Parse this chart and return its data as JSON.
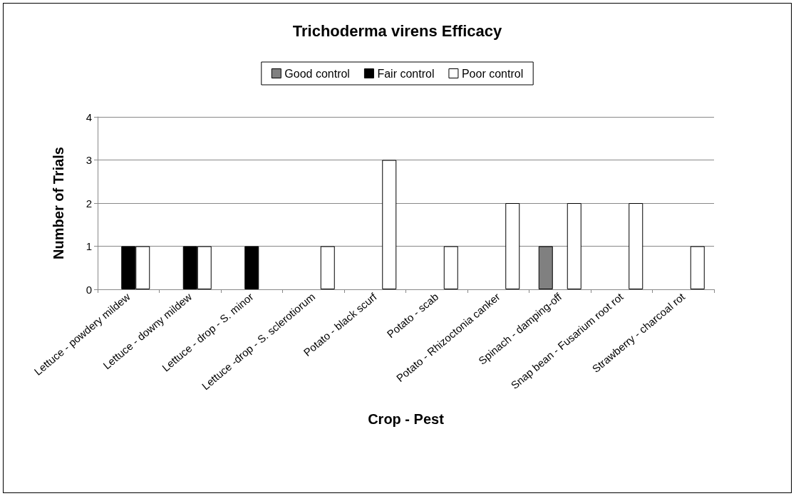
{
  "chart_data": {
    "type": "bar",
    "title": "Trichoderma virens Efficacy",
    "xlabel": "Crop - Pest",
    "ylabel": "Number of Trials",
    "categories": [
      "Lettuce - powdery mildew",
      "Lettuce - downy mildew",
      "Lettuce - drop - S. minor",
      "Lettuce -drop - S. sclerotiorum",
      "Potato - black scurf",
      "Potato - scab",
      "Potato - Rhizoctonia canker",
      "Spinach - damping-off",
      "Snap bean - Fusarium root rot",
      "Strawberry - charcoal rot"
    ],
    "series": [
      {
        "name": "Good control",
        "color": "#808080",
        "values": [
          0,
          0,
          0,
          0,
          0,
          0,
          0,
          1,
          0,
          0
        ]
      },
      {
        "name": "Fair control",
        "color": "#000000",
        "values": [
          1,
          1,
          1,
          0,
          0,
          0,
          0,
          0,
          0,
          0
        ]
      },
      {
        "name": "Poor control",
        "color": "#ffffff",
        "values": [
          1,
          1,
          0,
          1,
          3,
          1,
          2,
          2,
          2,
          1
        ]
      }
    ],
    "ylim": [
      0,
      4
    ],
    "yticks": [
      0,
      1,
      2,
      3,
      4
    ],
    "grid": "y",
    "legend": "top"
  }
}
